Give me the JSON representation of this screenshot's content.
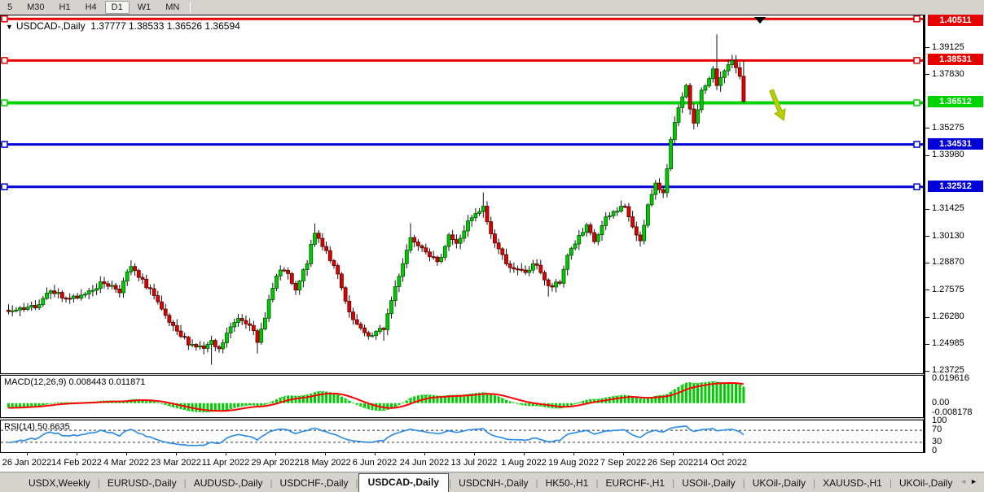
{
  "toolbar": {
    "timeframes": [
      {
        "label": "5",
        "active": false
      },
      {
        "label": "M30",
        "active": false
      },
      {
        "label": "H1",
        "active": false
      },
      {
        "label": "H4",
        "active": false
      },
      {
        "label": "D1",
        "active": true
      },
      {
        "label": "W1",
        "active": false
      },
      {
        "label": "MN",
        "active": false
      }
    ]
  },
  "chart": {
    "title_symbol": "USDCAD-,Daily",
    "title_ohlc": "1.37777 1.38533 1.36526 1.36594",
    "dropdown_glyph": "▼"
  },
  "indicators_labels": {
    "macd": "MACD(12,26,9) 0.008443 0.011871",
    "rsi": "RSI(14) 50.6635"
  },
  "chart_data": {
    "type": "candlestick",
    "symbol": "USDCAD-",
    "timeframe": "Daily",
    "current_bar": {
      "open": 1.37777,
      "high": 1.38533,
      "low": 1.36526,
      "close": 1.36594
    },
    "x_tick_labels": [
      "26 Jan 2022",
      "14 Feb 2022",
      "4 Mar 2022",
      "23 Mar 2022",
      "11 Apr 2022",
      "29 Apr 2022",
      "18 May 2022",
      "6 Jun 2022",
      "24 Jun 2022",
      "13 Jul 2022",
      "1 Aug 2022",
      "19 Aug 2022",
      "7 Sep 2022",
      "26 Sep 2022",
      "14 Oct 2022"
    ],
    "y_axis_ticks": [
      {
        "label": "1.39125",
        "value": 1.39125
      },
      {
        "label": "1.37830",
        "value": 1.3783
      },
      {
        "label": "1.35275",
        "value": 1.35275
      },
      {
        "label": "1.33980",
        "value": 1.3398
      },
      {
        "label": "1.31425",
        "value": 1.31425
      },
      {
        "label": "1.30130",
        "value": 1.3013
      },
      {
        "label": "1.28870",
        "value": 1.2887
      },
      {
        "label": "1.27575",
        "value": 1.27575
      },
      {
        "label": "1.26280",
        "value": 1.2628
      },
      {
        "label": "1.24985",
        "value": 1.24985
      },
      {
        "label": "1.23725",
        "value": 1.23725
      }
    ],
    "horizontal_lines": [
      {
        "label": "1.40511",
        "value": 1.40511,
        "color": "#e60000",
        "width": 3
      },
      {
        "label": "1.38531",
        "value": 1.38531,
        "color": "#e60000",
        "width": 3
      },
      {
        "label": "1.36512",
        "value": 1.36512,
        "color": "#00d300",
        "width": 4
      },
      {
        "label": "1.34531",
        "value": 1.34531,
        "color": "#0000d8",
        "width": 3
      },
      {
        "label": "1.32512",
        "value": 1.32512,
        "color": "#0000d8",
        "width": 3
      }
    ],
    "price_path_anchors": [
      [
        -35,
        1.285
      ],
      [
        -25,
        1.279
      ],
      [
        -15,
        1.27
      ],
      [
        -8,
        1.2645
      ],
      [
        -5,
        1.2655
      ],
      [
        0,
        1.2665
      ],
      [
        3,
        1.27
      ],
      [
        6,
        1.277
      ],
      [
        9,
        1.2725
      ],
      [
        13,
        1.2715
      ],
      [
        16,
        1.276
      ],
      [
        20,
        1.2795
      ],
      [
        24,
        1.276
      ],
      [
        27,
        1.287
      ],
      [
        29,
        1.2815
      ],
      [
        32,
        1.2765
      ],
      [
        35,
        1.2655
      ],
      [
        39,
        1.255
      ],
      [
        43,
        1.25
      ],
      [
        46,
        1.248
      ],
      [
        48,
        1.2505
      ],
      [
        50,
        1.247
      ],
      [
        52,
        1.255
      ],
      [
        55,
        1.263
      ],
      [
        58,
        1.2605
      ],
      [
        60,
        1.25
      ],
      [
        63,
        1.271
      ],
      [
        65,
        1.282
      ],
      [
        67,
        1.286
      ],
      [
        70,
        1.275
      ],
      [
        73,
        1.2895
      ],
      [
        75,
        1.303
      ],
      [
        78,
        1.295
      ],
      [
        81,
        1.2825
      ],
      [
        84,
        1.264
      ],
      [
        87,
        1.2565
      ],
      [
        90,
        1.254
      ],
      [
        93,
        1.258
      ],
      [
        96,
        1.2775
      ],
      [
        100,
        1.301
      ],
      [
        102,
        1.2985
      ],
      [
        104,
        1.2955
      ],
      [
        107,
        1.288
      ],
      [
        110,
        1.3025
      ],
      [
        112,
        1.2975
      ],
      [
        115,
        1.308
      ],
      [
        117,
        1.3115
      ],
      [
        119,
        1.315
      ],
      [
        121,
        1.3025
      ],
      [
        124,
        1.292
      ],
      [
        127,
        1.285
      ],
      [
        130,
        1.2845
      ],
      [
        133,
        1.2885
      ],
      [
        136,
        1.277
      ],
      [
        139,
        1.279
      ],
      [
        141,
        1.293
      ],
      [
        143,
        1.2985
      ],
      [
        146,
        1.3055
      ],
      [
        148,
        1.299
      ],
      [
        151,
        1.3095
      ],
      [
        154,
        1.3145
      ],
      [
        156,
        1.316
      ],
      [
        158,
        1.305
      ],
      [
        160,
        1.3
      ],
      [
        162,
        1.316
      ],
      [
        164,
        1.3255
      ],
      [
        166,
        1.323
      ],
      [
        168,
        1.347
      ],
      [
        170,
        1.362
      ],
      [
        172,
        1.372
      ],
      [
        174,
        1.354
      ],
      [
        176,
        1.371
      ],
      [
        178,
        1.376
      ],
      [
        179,
        1.3805
      ],
      [
        180,
        1.373
      ],
      [
        182,
        1.38
      ],
      [
        184,
        1.386
      ],
      [
        186,
        1.3778
      ],
      [
        187,
        1.36594
      ]
    ],
    "bar_extremes": {
      "27": {
        "h": 1.2901
      },
      "48": {
        "l": 1.2403
      },
      "60": {
        "l": 1.2457
      },
      "75": {
        "h": 1.3076
      },
      "93": {
        "l": 1.2518
      },
      "100": {
        "h": 1.3078
      },
      "119": {
        "h": 1.3224
      },
      "136": {
        "l": 1.2728
      },
      "180": {
        "h": 1.3977
      },
      "187": {
        "o": 1.37777,
        "h": 1.38533,
        "l": 1.36526,
        "c": 1.36594
      }
    },
    "indicators": {
      "macd": {
        "fast": 12,
        "slow": 26,
        "signal": 9,
        "current_main": 0.008443,
        "current_signal": 0.011871,
        "axis": [
          {
            "label": "0.019616",
            "value": 0.019616
          },
          {
            "label": "0.00",
            "value": 0.0
          },
          {
            "label": "-0.008178",
            "value": -0.008178
          }
        ]
      },
      "rsi": {
        "period": 14,
        "current": 50.6635,
        "overbought": 70,
        "oversold": 30,
        "axis": [
          {
            "label": "100",
            "value": 100
          },
          {
            "label": "70",
            "value": 70
          },
          {
            "label": "30",
            "value": 30
          },
          {
            "label": "0",
            "value": 0
          }
        ]
      }
    },
    "annotations": [
      {
        "type": "triangle-marker",
        "color": "#000000",
        "near_price": 1.40511
      },
      {
        "type": "down-right-arrow",
        "color": "#b8cf00",
        "near_price": 1.37
      }
    ]
  },
  "tabs": {
    "items": [
      {
        "label": "USDX,Weekly",
        "active": false
      },
      {
        "label": "EURUSD-,Daily",
        "active": false
      },
      {
        "label": "AUDUSD-,Daily",
        "active": false
      },
      {
        "label": "USDCHF-,Daily",
        "active": false
      },
      {
        "label": "USDCAD-,Daily",
        "active": true
      },
      {
        "label": "USDCNH-,Daily",
        "active": false
      },
      {
        "label": "HK50-,H1",
        "active": false
      },
      {
        "label": "EURCHF-,H1",
        "active": false
      },
      {
        "label": "USOil-,Daily",
        "active": false
      },
      {
        "label": "UKOil-,Daily",
        "active": false
      },
      {
        "label": "XAUUSD-,H1",
        "active": false
      },
      {
        "label": "UKOil-,Daily",
        "active": false
      }
    ],
    "scroll_left_glyph": "◄",
    "scroll_right_glyph": "►"
  },
  "colors": {
    "bull_fill": "#00cb00",
    "bull_stroke": "#005c00",
    "bear_fill": "#df0000",
    "bear_stroke": "#5a0000",
    "wick": "#111111",
    "macd_hist": "#00cc00",
    "macd_signal": "#ff0000",
    "rsi_line": "#2f8fe8",
    "badge_red": "#e60000",
    "badge_green": "#00d300",
    "badge_blue": "#0000d8"
  }
}
